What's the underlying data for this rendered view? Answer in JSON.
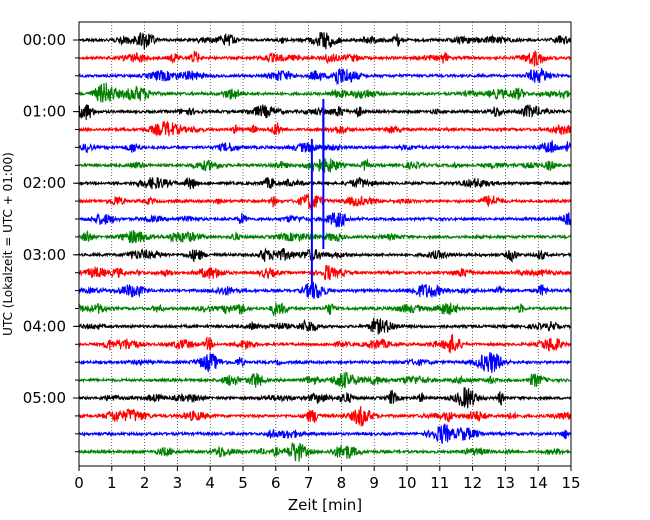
{
  "chart_data": {
    "type": "line",
    "xlabel": "Zeit  [min]",
    "ylabel": "UTC (Lokalzeit = UTC + 01:00)",
    "xlim": [
      0,
      15
    ],
    "x_ticks": [
      "0",
      "1",
      "2",
      "3",
      "4",
      "5",
      "6",
      "7",
      "8",
      "9",
      "10",
      "11",
      "12",
      "13",
      "14",
      "15"
    ],
    "y_tick_labels": [
      "00:00",
      "01:00",
      "02:00",
      "03:00",
      "04:00",
      "05:00"
    ],
    "trace_interval_minutes": 15,
    "trace_start": "00:00",
    "trace_count": 24,
    "trace_colors": [
      "#000000",
      "#ff0000",
      "#0000ff",
      "#008000"
    ],
    "grid": "vertical dotted lines at each minute",
    "events": [
      {
        "trace_start": "02:30",
        "x_min": [
          7.1,
          7.45
        ],
        "description": "large spike"
      },
      {
        "trace_start": "01:30",
        "x_min": [
          7.45
        ],
        "description": "spike"
      }
    ]
  }
}
